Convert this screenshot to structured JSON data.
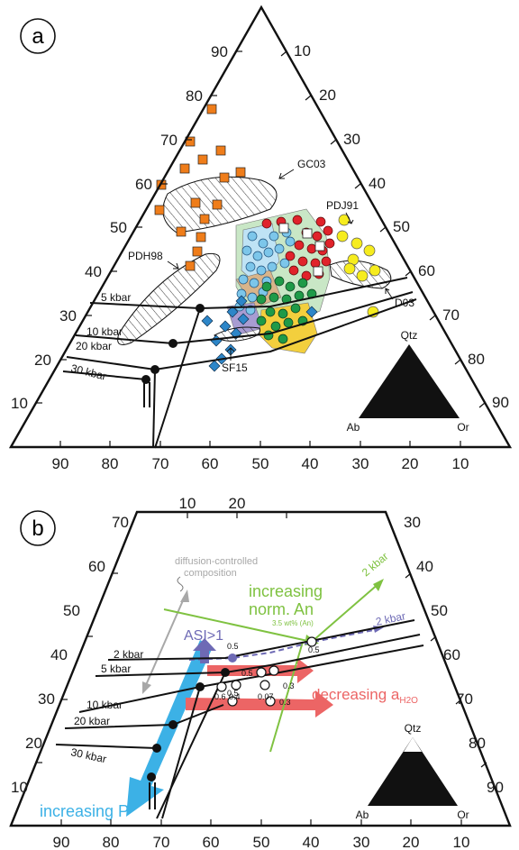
{
  "panel_a": {
    "letter": "a",
    "ticks_left": [
      "90",
      "80",
      "70",
      "60",
      "50",
      "40",
      "30",
      "20",
      "10"
    ],
    "ticks_right": [
      "10",
      "20",
      "30",
      "40",
      "50",
      "60",
      "70",
      "80",
      "90"
    ],
    "ticks_bottom": [
      "90",
      "80",
      "70",
      "60",
      "50",
      "40",
      "30",
      "20",
      "10"
    ],
    "labels": {
      "gc03": "GC03",
      "pdj91": "PDJ91",
      "pdh98": "PDH98",
      "d03": "D03",
      "sf15": "SF15"
    },
    "isobars": [
      "5 kbar",
      "10 kbar",
      "20 kbar",
      "30 kbar"
    ],
    "mini": {
      "top": "Qtz",
      "left": "Ab",
      "right": "Or"
    }
  },
  "panel_b": {
    "letter": "b",
    "ticks_left": [
      "70",
      "60",
      "50",
      "40",
      "30",
      "20",
      "10"
    ],
    "ticks_top": [
      "10",
      "20",
      "30"
    ],
    "ticks_right": [
      "40",
      "50",
      "60",
      "70",
      "80",
      "90"
    ],
    "ticks_bottom": [
      "90",
      "80",
      "70",
      "60",
      "50",
      "40",
      "30",
      "20",
      "10"
    ],
    "diffusion_line1": "diffusion-controlled",
    "diffusion_line2": "composition",
    "norm_an_line1": "increasing",
    "norm_an_line2": "norm. An",
    "an_note": "3.5 wt% (An)",
    "green_kbar": "2 kbar",
    "asi": "ASI>1",
    "purple_kbar": "2 kbar",
    "isobars": [
      "2 kbar",
      "5 kbar",
      "10 kbar",
      "20 kbar",
      "30 kbar"
    ],
    "aw_prefix": "decreasing a",
    "aw_sub": "H2O",
    "increasing_p": "increasing P",
    "values": {
      "v05a": "0.5",
      "v05b": "0.5",
      "v05c": "0.5",
      "v03a": "0.3",
      "v06": "0.6",
      "v04": "0.4",
      "v007": "0.07",
      "v05d": "0.5",
      "v03b": "0.3"
    },
    "mini": {
      "top": "Qtz",
      "left": "Ab",
      "right": "Or"
    }
  },
  "colors": {
    "orange": "#ef7d1a",
    "red": "#e0232b",
    "sky": "#7cc6ea",
    "green": "#1f9a48",
    "yellow": "#f6ec1e",
    "blue": "#2d86c8",
    "norm_green": "#7fc241",
    "purple": "#6e6ab5",
    "salmon": "#ec6565",
    "arrow_blue": "#3cb1e6",
    "gray": "#a8a8a8"
  }
}
